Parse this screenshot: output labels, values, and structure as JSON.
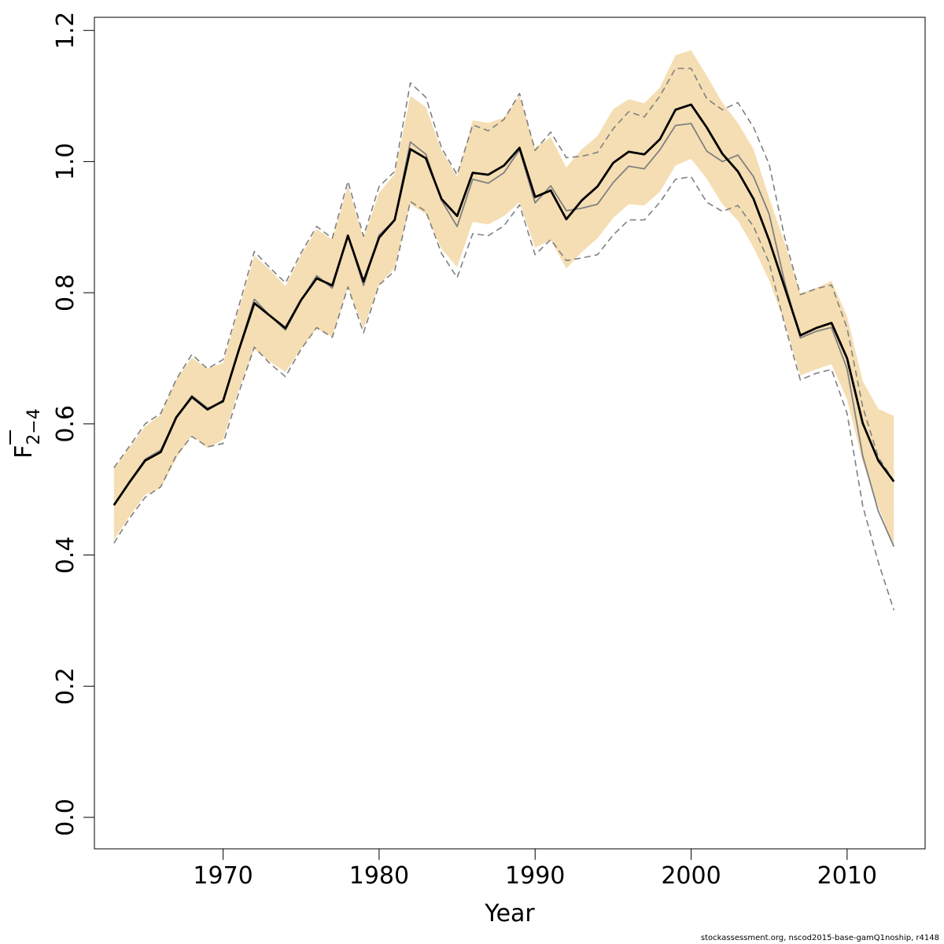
{
  "chart_data": {
    "type": "line",
    "xlabel": "Year",
    "ylabel_main": "F",
    "ylabel_sub": "2−4",
    "xlim": [
      1961.75,
      2015
    ],
    "ylim": [
      -0.048,
      1.22
    ],
    "x_ticks": [
      1970,
      1980,
      1990,
      2000,
      2010
    ],
    "x_tick_labels": [
      "1970",
      "1980",
      "1990",
      "2000",
      "2010"
    ],
    "y_ticks": [
      0.0,
      0.2,
      0.4,
      0.6,
      0.8,
      1.0,
      1.2
    ],
    "y_tick_labels": [
      "0.0",
      "0.2",
      "0.4",
      "0.6",
      "0.8",
      "1.0",
      "1.2"
    ],
    "grid": false,
    "colors": {
      "band": "#f5deb3",
      "estimate": "#000000",
      "comparison": "#808080",
      "comparison_bounds": "#808080"
    },
    "x": [
      1963,
      1964,
      1965,
      1966,
      1967,
      1968,
      1969,
      1970,
      1971,
      1972,
      1973,
      1974,
      1975,
      1976,
      1977,
      1978,
      1979,
      1980,
      1981,
      1982,
      1983,
      1984,
      1985,
      1986,
      1987,
      1988,
      1989,
      1990,
      1991,
      1992,
      1993,
      1994,
      1995,
      1996,
      1997,
      1998,
      1999,
      2000,
      2001,
      2002,
      2003,
      2004,
      2005,
      2006,
      2007,
      2008,
      2009,
      2010,
      2011,
      2012,
      2013
    ],
    "series": [
      {
        "role": "band_upper",
        "values": [
          0.531,
          0.564,
          0.596,
          0.614,
          0.668,
          0.701,
          0.684,
          0.693,
          0.774,
          0.856,
          0.835,
          0.81,
          0.858,
          0.897,
          0.881,
          0.963,
          0.883,
          0.952,
          0.981,
          1.1,
          1.083,
          1.017,
          0.977,
          1.063,
          1.059,
          1.067,
          1.1,
          1.021,
          1.037,
          0.991,
          1.019,
          1.039,
          1.08,
          1.095,
          1.089,
          1.113,
          1.162,
          1.17,
          1.131,
          1.09,
          1.059,
          1.019,
          0.945,
          0.876,
          0.799,
          0.807,
          0.818,
          0.764,
          0.665,
          0.623,
          0.612
        ]
      },
      {
        "role": "band_lower",
        "values": [
          0.423,
          0.459,
          0.492,
          0.502,
          0.547,
          0.583,
          0.563,
          0.576,
          0.652,
          0.714,
          0.695,
          0.679,
          0.715,
          0.745,
          0.733,
          0.809,
          0.746,
          0.812,
          0.838,
          0.935,
          0.92,
          0.867,
          0.839,
          0.908,
          0.904,
          0.917,
          0.938,
          0.869,
          0.88,
          0.837,
          0.862,
          0.883,
          0.914,
          0.935,
          0.933,
          0.954,
          0.994,
          1.004,
          0.974,
          0.935,
          0.91,
          0.869,
          0.819,
          0.754,
          0.674,
          0.683,
          0.691,
          0.637,
          0.542,
          0.474,
          0.413
        ]
      },
      {
        "role": "estimate",
        "values": [
          0.476,
          0.511,
          0.544,
          0.557,
          0.61,
          0.641,
          0.622,
          0.635,
          0.712,
          0.784,
          0.765,
          0.746,
          0.789,
          0.822,
          0.811,
          0.887,
          0.817,
          0.884,
          0.911,
          1.019,
          1.005,
          0.943,
          0.917,
          0.983,
          0.98,
          0.994,
          1.021,
          0.946,
          0.956,
          0.912,
          0.941,
          0.962,
          0.998,
          1.015,
          1.011,
          1.034,
          1.079,
          1.087,
          1.052,
          1.012,
          0.985,
          0.943,
          0.88,
          0.808,
          0.735,
          0.746,
          0.754,
          0.7,
          0.601,
          0.544,
          0.512
        ]
      },
      {
        "role": "comparison",
        "values": [
          0.476,
          0.511,
          0.546,
          0.56,
          0.61,
          0.643,
          0.624,
          0.633,
          0.713,
          0.79,
          0.765,
          0.743,
          0.788,
          0.826,
          0.807,
          0.888,
          0.811,
          0.888,
          0.911,
          1.03,
          1.011,
          0.941,
          0.901,
          0.973,
          0.967,
          0.983,
          1.018,
          0.937,
          0.963,
          0.925,
          0.929,
          0.935,
          0.968,
          0.993,
          0.989,
          1.018,
          1.055,
          1.058,
          1.016,
          1.0,
          1.01,
          0.977,
          0.92,
          0.816,
          0.731,
          0.741,
          0.747,
          0.684,
          0.551,
          0.467,
          0.413
        ]
      },
      {
        "role": "comparison_upper",
        "values": [
          0.533,
          0.566,
          0.6,
          0.616,
          0.668,
          0.706,
          0.684,
          0.698,
          0.779,
          0.863,
          0.838,
          0.815,
          0.861,
          0.901,
          0.883,
          0.97,
          0.886,
          0.962,
          0.985,
          1.12,
          1.098,
          1.021,
          0.98,
          1.056,
          1.047,
          1.064,
          1.104,
          1.017,
          1.045,
          1.006,
          1.008,
          1.014,
          1.05,
          1.076,
          1.068,
          1.1,
          1.142,
          1.142,
          1.096,
          1.079,
          1.09,
          1.052,
          0.996,
          0.884,
          0.797,
          0.806,
          0.812,
          0.746,
          0.626,
          0.549,
          0.513
        ]
      },
      {
        "role": "comparison_lower",
        "values": [
          0.418,
          0.456,
          0.488,
          0.504,
          0.552,
          0.581,
          0.565,
          0.57,
          0.647,
          0.717,
          0.692,
          0.672,
          0.714,
          0.747,
          0.732,
          0.809,
          0.739,
          0.812,
          0.833,
          0.939,
          0.924,
          0.86,
          0.823,
          0.89,
          0.887,
          0.902,
          0.934,
          0.858,
          0.881,
          0.849,
          0.853,
          0.858,
          0.888,
          0.911,
          0.911,
          0.938,
          0.973,
          0.977,
          0.938,
          0.924,
          0.933,
          0.901,
          0.846,
          0.751,
          0.667,
          0.677,
          0.683,
          0.616,
          0.475,
          0.389,
          0.316
        ]
      }
    ]
  },
  "footer": {
    "credit": "stockassessment.org, nscod2015-base-gamQ1noship, r4148"
  }
}
